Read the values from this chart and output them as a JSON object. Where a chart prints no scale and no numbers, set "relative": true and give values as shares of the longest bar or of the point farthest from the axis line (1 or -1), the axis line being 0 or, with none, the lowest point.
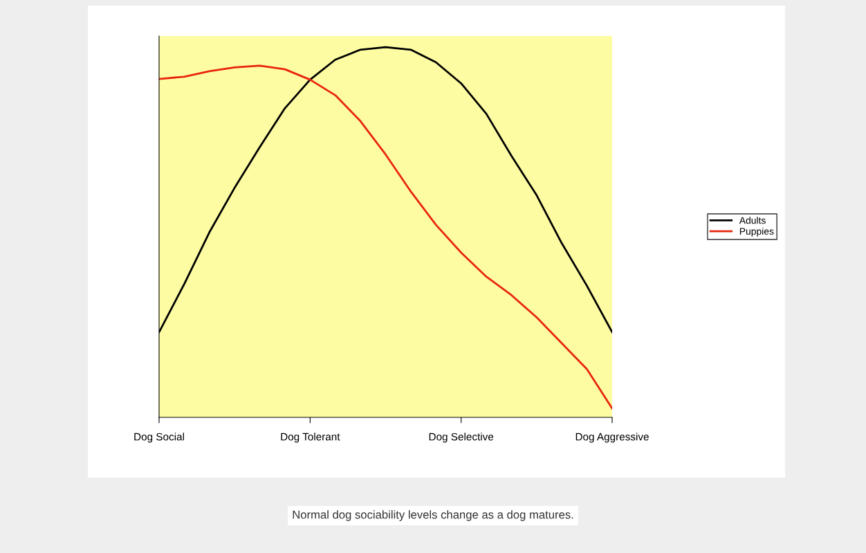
{
  "chart_data": {
    "type": "line",
    "relative": true,
    "legend": "right",
    "marker": "none",
    "line_style": "solid",
    "categories": [
      "Dog Social",
      null,
      null,
      null,
      null,
      null,
      "Dog Tolerant",
      null,
      null,
      null,
      null,
      null,
      "Dog Selective",
      null,
      null,
      null,
      null,
      null,
      "Dog Aggressive"
    ],
    "series": [
      {
        "name": "Adults",
        "color": "#000000",
        "values": [
          0.23,
          0.36,
          0.5,
          0.62,
          0.73,
          0.835,
          0.912,
          0.966,
          0.993,
          1.0,
          0.993,
          0.959,
          0.902,
          0.82,
          0.706,
          0.6,
          0.47,
          0.355,
          0.23
        ]
      },
      {
        "name": "Puppies",
        "color": "#e8250c",
        "values": [
          0.914,
          0.92,
          0.935,
          0.945,
          0.95,
          0.94,
          0.912,
          0.87,
          0.8,
          0.71,
          0.61,
          0.52,
          0.445,
          0.38,
          0.33,
          0.27,
          0.2,
          0.13,
          0.024
        ]
      }
    ],
    "annotations": [
      "Normal dog sociability levels change as a dog matures."
    ]
  }
}
